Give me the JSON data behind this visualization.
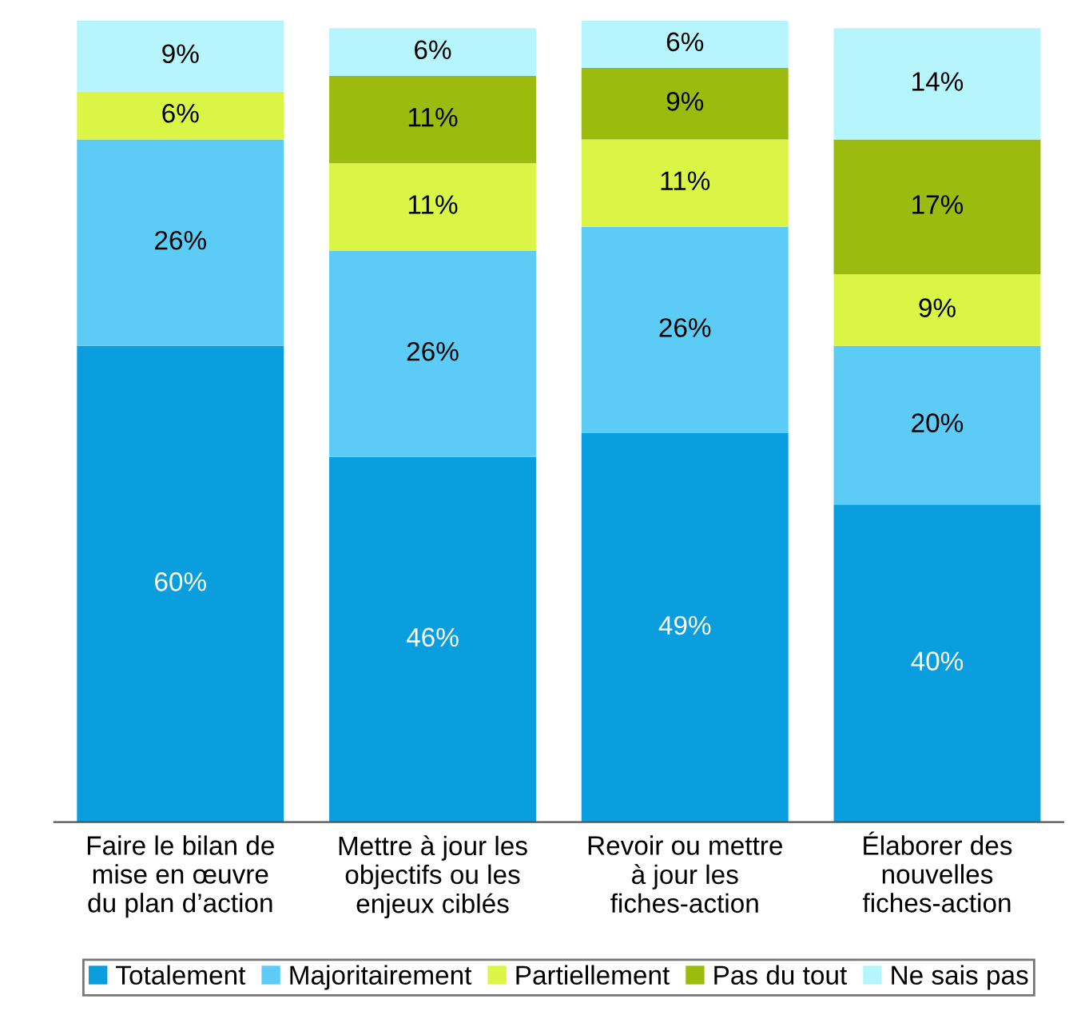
{
  "chart_data": {
    "type": "bar",
    "stacked": true,
    "legend": "bottom",
    "grid": false,
    "tick_labels": "x",
    "categories": [
      "Faire le bilan de\nmise en œuvre\ndu plan d’action",
      "Mettre à jour les\nobjectifs ou les\nenjeux ciblés",
      "Revoir ou mettre\nà jour les\nfiches-action",
      "Élaborer des\nnouvelles\nfiches-action"
    ],
    "series": [
      {
        "name": "Totalement",
        "color": "#0a9ede",
        "values": [
          60,
          46,
          49,
          40
        ],
        "value_labels": [
          "60%",
          "46%",
          "49%",
          "40%"
        ]
      },
      {
        "name": "Majoritairement",
        "color": "#5ccbf5",
        "values": [
          26,
          26,
          26,
          20
        ],
        "value_labels": [
          "26%",
          "26%",
          "26%",
          "20%"
        ]
      },
      {
        "name": "Partiellement",
        "color": "#dbf547",
        "values": [
          6,
          11,
          11,
          9
        ],
        "value_labels": [
          "6%",
          "11%",
          "11%",
          "9%"
        ]
      },
      {
        "name": "Pas du tout",
        "color": "#9dbb0f",
        "values": [
          0,
          11,
          9,
          17
        ],
        "value_labels": [
          null,
          "11%",
          "9%",
          "17%"
        ]
      },
      {
        "name": "Ne sais pas",
        "color": "#b5f5fb",
        "values": [
          9,
          6,
          6,
          14
        ],
        "value_labels": [
          "9%",
          "6%",
          "6%",
          "14%"
        ]
      }
    ]
  }
}
